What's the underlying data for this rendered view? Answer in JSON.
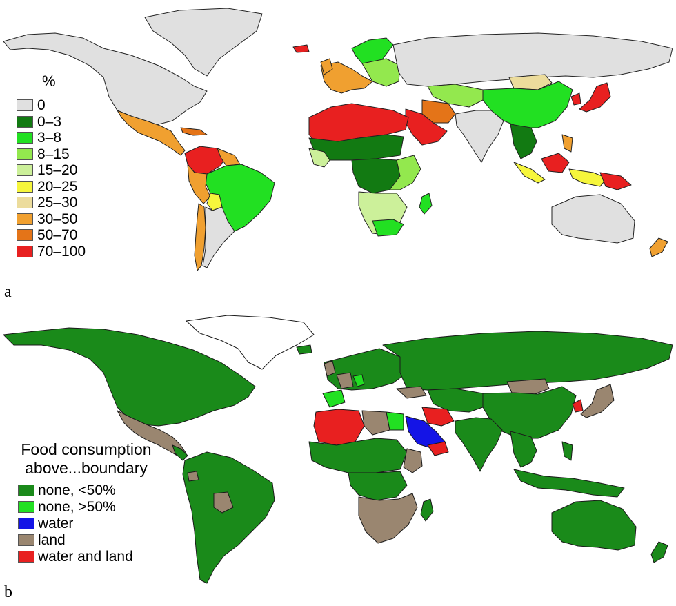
{
  "panel_a": {
    "label": "a",
    "legend": {
      "title": "%",
      "items": [
        {
          "label": "0",
          "color": "#e0e0e0"
        },
        {
          "label": "0–3",
          "color": "#127a12"
        },
        {
          "label": "3–8",
          "color": "#22e022"
        },
        {
          "label": "8–15",
          "color": "#93e84e"
        },
        {
          "label": "15–20",
          "color": "#ccf09a"
        },
        {
          "label": "20–25",
          "color": "#f6f63c"
        },
        {
          "label": "25–30",
          "color": "#ecdc9c"
        },
        {
          "label": "30–50",
          "color": "#f0a030"
        },
        {
          "label": "50–70",
          "color": "#e47418"
        },
        {
          "label": "70–100",
          "color": "#e82020"
        }
      ]
    }
  },
  "panel_b": {
    "label": "b",
    "legend": {
      "title_line1": "Food consumption",
      "title_line2": "above...boundary",
      "items": [
        {
          "label": "none, <50%",
          "color": "#1a8a1a"
        },
        {
          "label": "none, >50%",
          "color": "#22e022"
        },
        {
          "label": "water",
          "color": "#1414e6"
        },
        {
          "label": "land",
          "color": "#9a8670"
        },
        {
          "label": "water and land",
          "color": "#e82020"
        }
      ]
    }
  }
}
